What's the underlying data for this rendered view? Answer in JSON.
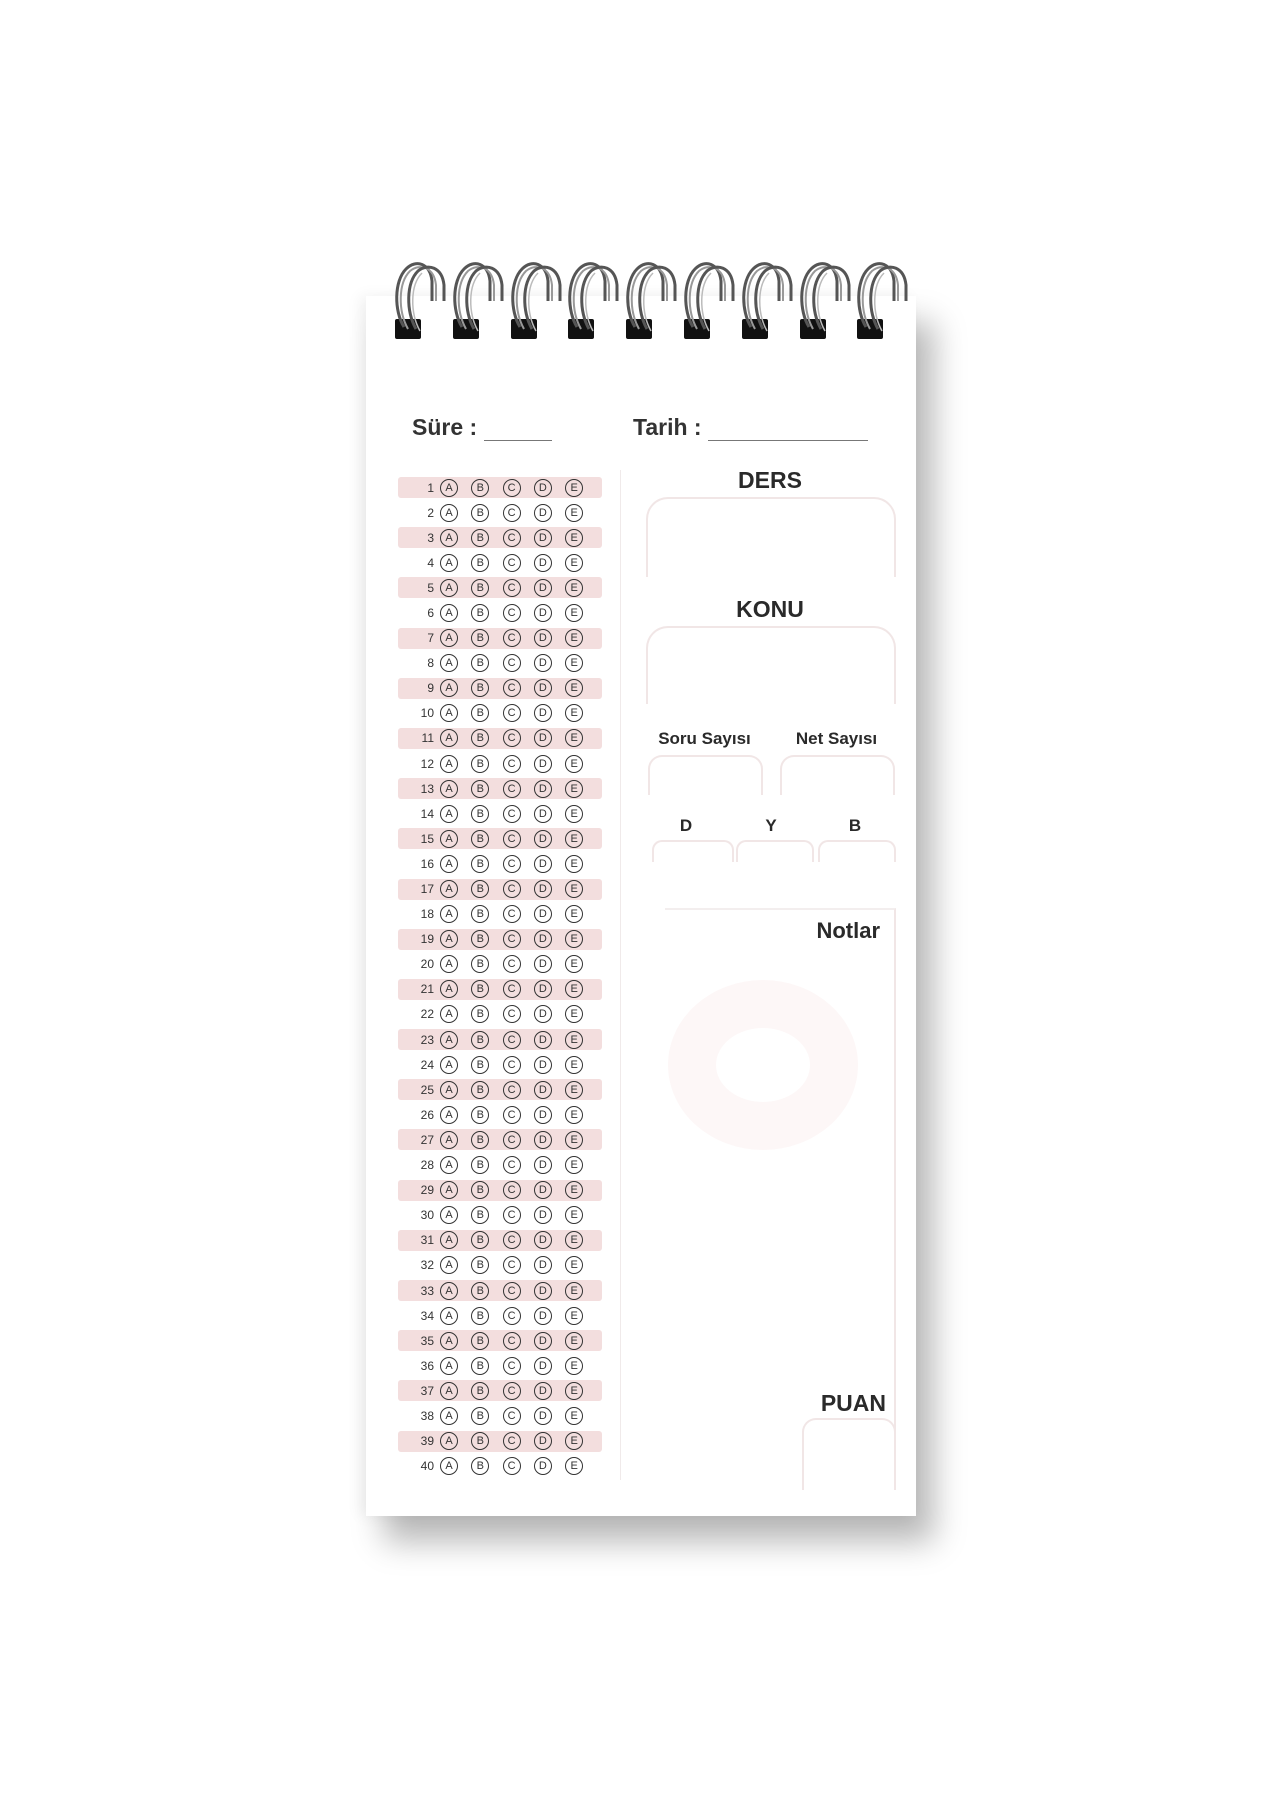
{
  "header": {
    "sure_label": "Süre :",
    "tarih_label": "Tarih :"
  },
  "answer_sheet": {
    "options": [
      "A",
      "B",
      "C",
      "D",
      "E"
    ],
    "questions": [
      "1",
      "2",
      "3",
      "4",
      "5",
      "6",
      "7",
      "8",
      "9",
      "10",
      "11",
      "12",
      "13",
      "14",
      "15",
      "16",
      "17",
      "18",
      "19",
      "20",
      "21",
      "22",
      "23",
      "24",
      "25",
      "26",
      "27",
      "28",
      "29",
      "30",
      "31",
      "32",
      "33",
      "34",
      "35",
      "36",
      "37",
      "38",
      "39",
      "40"
    ],
    "shade_color": "#f3dede"
  },
  "right_panel": {
    "ders_label": "DERS",
    "konu_label": "KONU",
    "soru_sayisi_label": "Soru Sayısı",
    "net_sayisi_label": "Net Sayısı",
    "d_label": "D",
    "y_label": "Y",
    "b_label": "B",
    "notlar_label": "Notlar",
    "puan_label": "PUAN"
  },
  "binding": {
    "ring_count": 9,
    "ring_color": "#555555"
  }
}
